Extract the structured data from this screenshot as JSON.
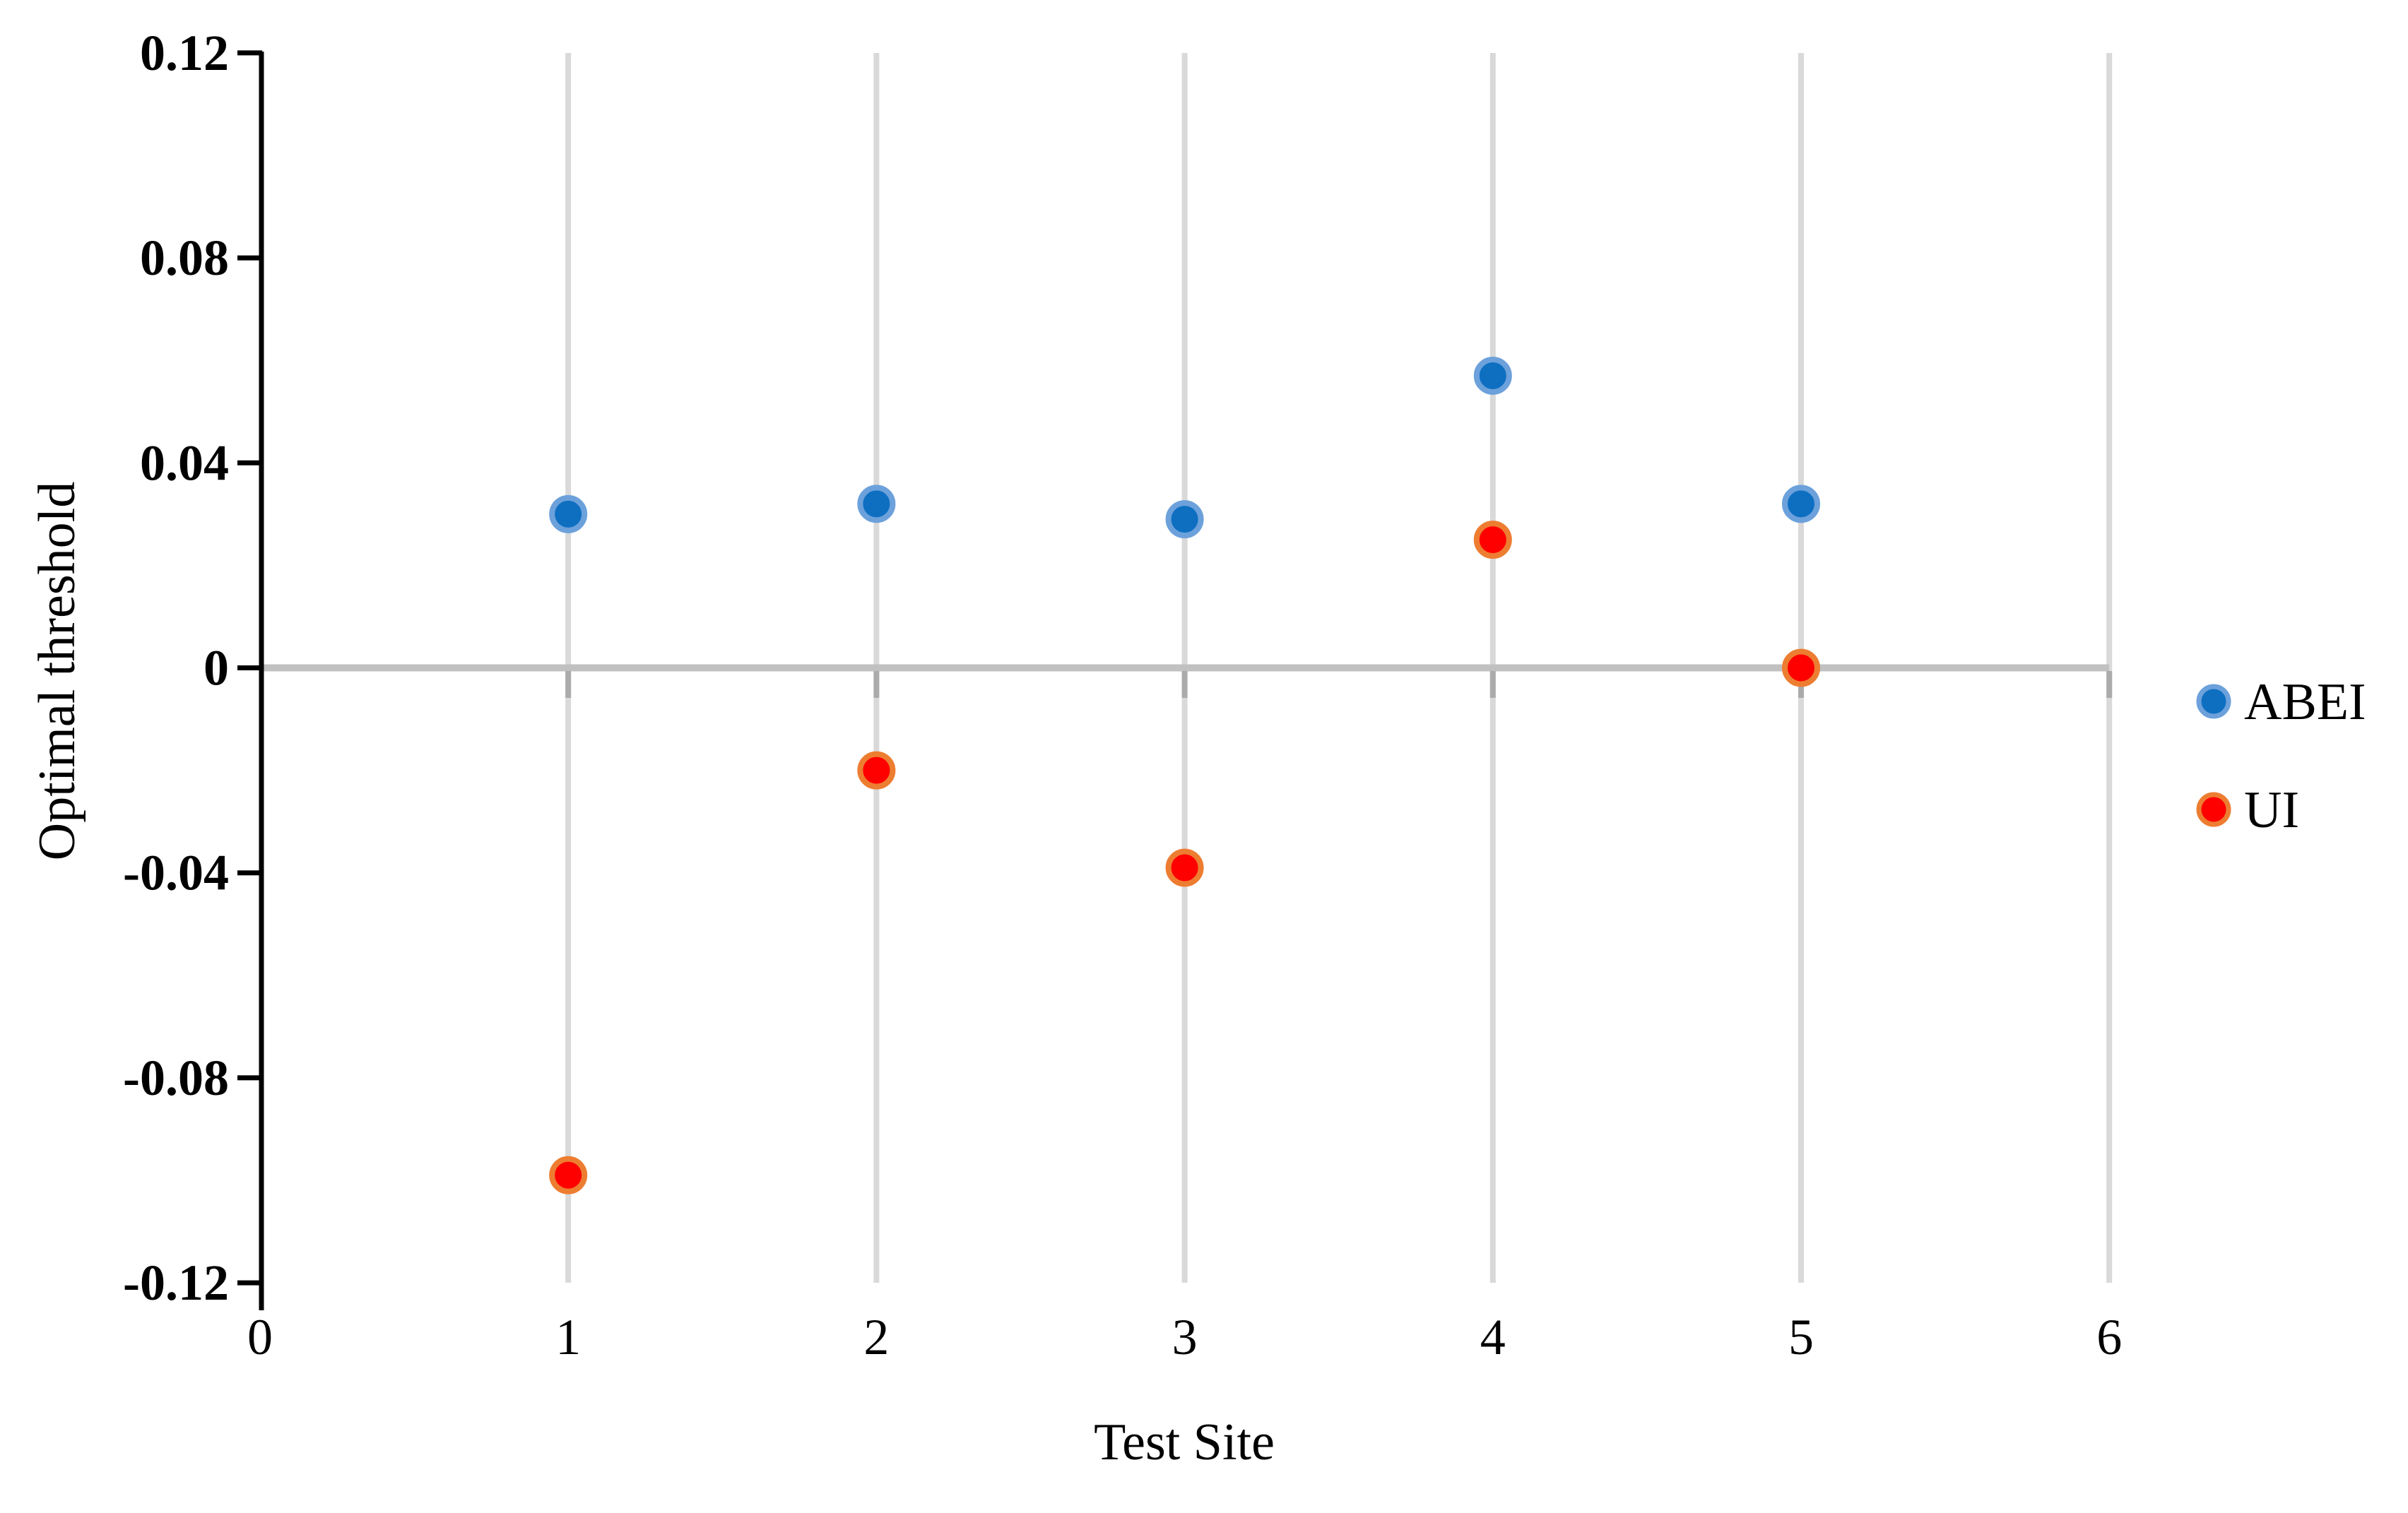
{
  "figure": {
    "background": "#ffffff"
  },
  "chart_data": {
    "type": "scatter",
    "title": "",
    "xlabel": "Test Site",
    "ylabel": "Optimal threshold",
    "xlim": [
      0,
      6
    ],
    "ylim": [
      -0.12,
      0.12
    ],
    "x_tick_values": [
      0,
      1,
      2,
      3,
      4,
      5,
      6
    ],
    "x_tick_labels": [
      "0",
      "1",
      "2",
      "3",
      "4",
      "5",
      "6"
    ],
    "y_tick_values": [
      0.12,
      0.08,
      0.04,
      0,
      -0.04,
      -0.08,
      -0.12
    ],
    "y_tick_labels": [
      "0.12",
      "0.08",
      "0.04",
      "0",
      "-0.04",
      "-0.08",
      "-0.12"
    ],
    "grid": {
      "vertical_gridlines_at_x": [
        1,
        2,
        3,
        4,
        5,
        6
      ],
      "horizontal_zero_line": true,
      "zero_line_ticks_at_x": [
        1,
        2,
        3,
        4,
        5,
        6
      ]
    },
    "legend_position": "right",
    "series": [
      {
        "name": "ABEI",
        "points": [
          {
            "x": 1,
            "y": 0.03
          },
          {
            "x": 2,
            "y": 0.032
          },
          {
            "x": 3,
            "y": 0.029
          },
          {
            "x": 4,
            "y": 0.057
          },
          {
            "x": 5,
            "y": 0.032
          }
        ],
        "marker": {
          "shape": "circle",
          "fill": "#0E6FC1",
          "ring": "#6CA1DB"
        }
      },
      {
        "name": "UI",
        "points": [
          {
            "x": 1,
            "y": -0.099
          },
          {
            "x": 2,
            "y": -0.02
          },
          {
            "x": 3,
            "y": -0.039
          },
          {
            "x": 4,
            "y": 0.025
          },
          {
            "x": 5,
            "y": 0.0
          }
        ],
        "marker": {
          "shape": "circle",
          "fill": "#FE0000",
          "ring": "#ED7D31"
        }
      }
    ],
    "axis_colors": {
      "y_axis": "#000000",
      "gridline": "#D9D9D9",
      "zero_line": "#C1C1C1",
      "zero_tick": "#ABABAB",
      "text": "#000000"
    }
  }
}
